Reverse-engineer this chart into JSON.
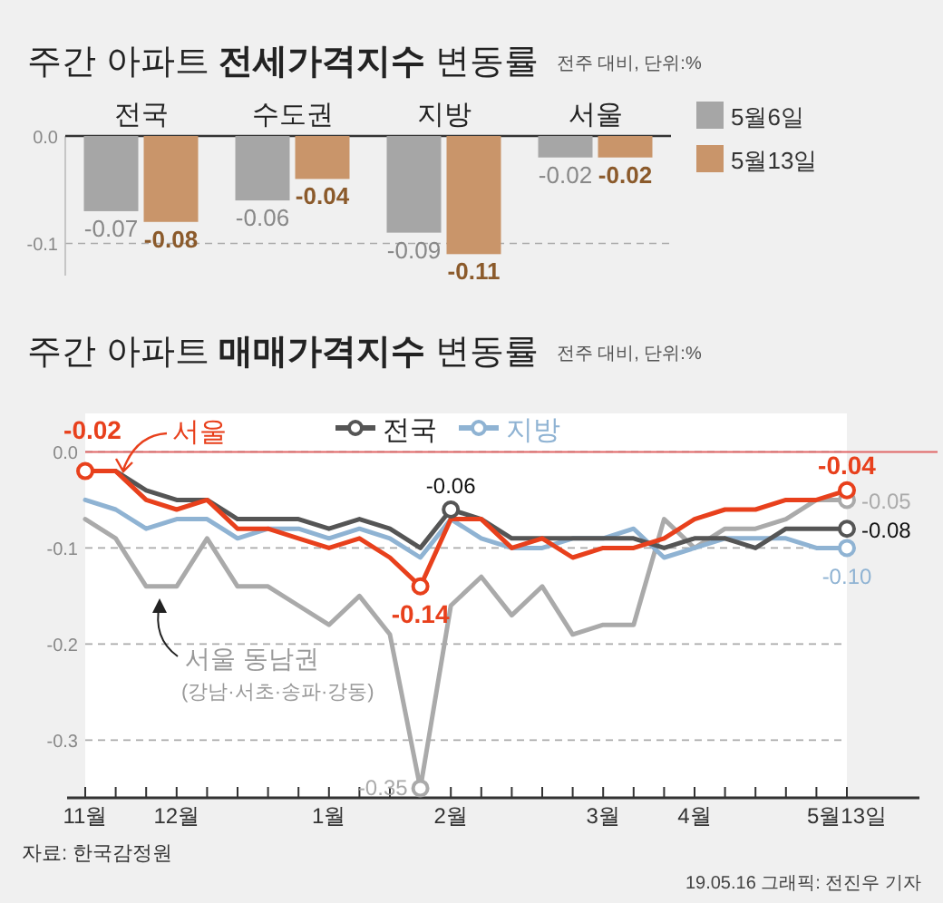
{
  "chart_data": [
    {
      "type": "bar",
      "title": "주간 아파트 **전세가격지수** 변동률",
      "subtitle": "전주 대비, 단위:%",
      "categories": [
        "전국",
        "수도권",
        "지방",
        "서울"
      ],
      "series": [
        {
          "name": "5월6일",
          "color": "#a6a6a6",
          "values": [
            -0.07,
            -0.06,
            -0.09,
            -0.02
          ]
        },
        {
          "name": "5월13일",
          "color": "#c9956a",
          "values": [
            -0.08,
            -0.04,
            -0.11,
            -0.02
          ]
        }
      ],
      "ylim": [
        -0.13,
        0
      ],
      "yticks": [
        {
          "value": 0,
          "label": "0.0"
        },
        {
          "value": -0.1,
          "label": "-0.1"
        }
      ],
      "grid": "y",
      "data_labels": true,
      "legend": "right"
    },
    {
      "type": "line",
      "title": "주간 아파트 **매매가격지수** 변동률",
      "subtitle": "전주 대비, 단위:%",
      "categories": [
        "11월",
        null,
        null,
        "12월",
        null,
        null,
        null,
        null,
        "1월",
        null,
        null,
        null,
        "2월",
        null,
        null,
        null,
        null,
        "3월",
        null,
        null,
        "4월",
        null,
        null,
        null,
        null,
        "5월13일"
      ],
      "series": [
        {
          "name": "서울",
          "color": "#e8401c",
          "values": [
            -0.02,
            -0.02,
            -0.05,
            -0.06,
            -0.05,
            -0.08,
            -0.08,
            -0.09,
            -0.1,
            -0.09,
            -0.11,
            -0.14,
            -0.07,
            -0.07,
            -0.1,
            -0.09,
            -0.11,
            -0.1,
            -0.1,
            -0.09,
            -0.07,
            -0.06,
            -0.06,
            -0.05,
            -0.05,
            -0.04
          ],
          "value_labels": [
            "-0.02",
            null,
            null,
            null,
            null,
            null,
            null,
            null,
            null,
            null,
            null,
            "-0.14",
            null,
            null,
            null,
            null,
            null,
            null,
            null,
            null,
            null,
            null,
            null,
            null,
            null,
            "-0.04"
          ]
        },
        {
          "name": "전국",
          "color": "#555555",
          "values": [
            -0.02,
            -0.02,
            -0.04,
            -0.05,
            -0.05,
            -0.07,
            -0.07,
            -0.07,
            -0.08,
            -0.07,
            -0.08,
            -0.1,
            -0.06,
            -0.07,
            -0.09,
            -0.09,
            -0.09,
            -0.09,
            -0.09,
            -0.1,
            -0.09,
            -0.09,
            -0.1,
            -0.08,
            -0.08,
            -0.08
          ],
          "value_labels": [
            null,
            null,
            null,
            null,
            null,
            null,
            null,
            null,
            null,
            null,
            null,
            null,
            "-0.06",
            null,
            null,
            null,
            null,
            null,
            null,
            null,
            null,
            null,
            null,
            null,
            null,
            "-0.08"
          ]
        },
        {
          "name": "지방",
          "color": "#8fb3d3",
          "values": [
            -0.05,
            -0.06,
            -0.08,
            -0.07,
            -0.07,
            -0.09,
            -0.08,
            -0.08,
            -0.09,
            -0.08,
            -0.09,
            -0.11,
            -0.07,
            -0.09,
            -0.1,
            -0.1,
            -0.09,
            -0.09,
            -0.08,
            -0.11,
            -0.1,
            -0.09,
            -0.09,
            -0.09,
            -0.1,
            -0.1
          ],
          "value_labels": [
            null,
            null,
            null,
            null,
            null,
            null,
            null,
            null,
            null,
            null,
            null,
            null,
            null,
            null,
            null,
            null,
            null,
            null,
            null,
            null,
            null,
            null,
            null,
            null,
            null,
            "-0.10"
          ]
        },
        {
          "name": "서울 동남권",
          "color": "#aaaaaa",
          "values": [
            -0.07,
            -0.09,
            -0.14,
            -0.14,
            -0.09,
            -0.14,
            -0.14,
            -0.16,
            -0.18,
            -0.15,
            -0.19,
            -0.35,
            -0.16,
            -0.13,
            -0.17,
            -0.14,
            -0.19,
            -0.18,
            -0.18,
            -0.07,
            -0.1,
            -0.08,
            -0.08,
            -0.07,
            -0.05,
            -0.05
          ],
          "value_labels": [
            null,
            null,
            null,
            null,
            null,
            null,
            null,
            null,
            null,
            null,
            null,
            "-0.35",
            null,
            null,
            null,
            null,
            null,
            null,
            null,
            null,
            null,
            null,
            null,
            null,
            null,
            "-0.05"
          ]
        }
      ],
      "ylim": [
        -0.36,
        0.04
      ],
      "yticks": [
        {
          "value": 0,
          "label": "0.0"
        },
        {
          "value": -0.1,
          "label": "-0.1"
        },
        {
          "value": -0.2,
          "label": "-0.2"
        },
        {
          "value": -0.3,
          "label": "-0.3"
        }
      ],
      "grid": "y",
      "legend": "top",
      "ref_lines": [
        {
          "axis": "y",
          "value": 0,
          "color": "#e06666"
        }
      ],
      "annotations": [
        "(강남·서초·송파·강동)",
        "자료: 한국감정원",
        "19.05.16 그래픽: 전진우 기자"
      ]
    }
  ]
}
